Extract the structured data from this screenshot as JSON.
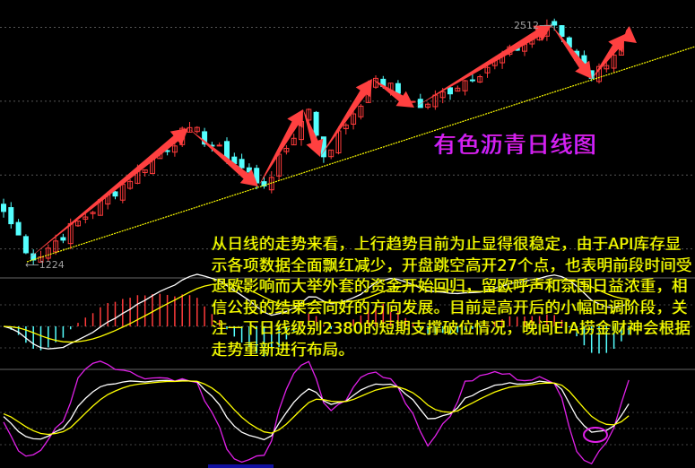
{
  "chart_data": {
    "type": "candlestick",
    "title": "有色沥青日线图",
    "annotations": {
      "high_label": "2512",
      "low_label": "1224"
    },
    "price_pivots": [
      {
        "i": 0,
        "price": 1490
      },
      {
        "i": 4,
        "price": 1224
      },
      {
        "i": 25,
        "price": 1950
      },
      {
        "i": 35,
        "price": 1630
      },
      {
        "i": 41,
        "price": 2050
      },
      {
        "i": 43,
        "price": 1790
      },
      {
        "i": 50,
        "price": 2220
      },
      {
        "i": 56,
        "price": 2060
      },
      {
        "i": 74,
        "price": 2512
      },
      {
        "i": 79,
        "price": 2220
      },
      {
        "i": 84,
        "price": 2460
      }
    ],
    "grid_levels": [
      2500,
      2095,
      1690,
      1285
    ],
    "grid": true,
    "indicators": [
      "MACD",
      "KDJ"
    ],
    "support_line": true
  },
  "colors": {
    "up": "#ff3b3b",
    "down": "#54ffff",
    "arrow": "#ff4040",
    "support": "#ffff00",
    "title": "#e020e8",
    "note": "#ffff00",
    "macd_dif": "#ffffff",
    "macd_dea": "#ffff00",
    "kdj_k": "#ffffff",
    "kdj_d": "#ffff00",
    "kdj_j": "#e020e8"
  },
  "note_text": "从日线的走势来看，上行趋势目前为止显得很稳定，由于API库存显示各项数据全面飘红减少，开盘跳空高开27个点，也表明前段时间受退欧影响而大举外套的资金开始回归，留欧呼声和氛围日益浓重，相信公投的结果会向好的方向发展。目前是高开后的小幅回调阶段，关注一下日线级别2380的短期支撑破位情况，晚间EIA捞金财神会根据走势重新进行布局。"
}
